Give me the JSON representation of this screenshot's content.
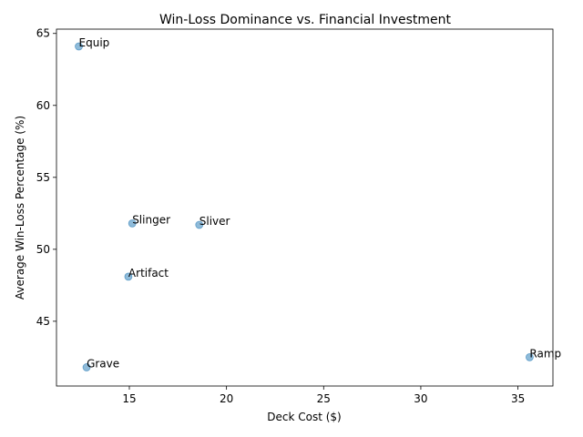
{
  "chart_data": {
    "type": "scatter",
    "title": "Win-Loss Dominance vs. Financial Investment",
    "xlabel": "Deck Cost ($)",
    "ylabel": "Average Win-Loss Percentage (%)",
    "xlim": [
      11.25,
      36.8
    ],
    "ylim": [
      40.5,
      65.3
    ],
    "xticks": [
      15,
      20,
      25,
      30,
      35
    ],
    "yticks": [
      45,
      50,
      55,
      60,
      65
    ],
    "grid": false,
    "point_color": "#1f77b4",
    "points": [
      {
        "label": "Equip",
        "x": 12.4,
        "y": 64.1
      },
      {
        "label": "Slinger",
        "x": 15.15,
        "y": 51.8
      },
      {
        "label": "Sliver",
        "x": 18.6,
        "y": 51.7
      },
      {
        "label": "Artifact",
        "x": 14.95,
        "y": 48.1
      },
      {
        "label": "Ramp",
        "x": 35.6,
        "y": 42.5
      },
      {
        "label": "Grave",
        "x": 12.8,
        "y": 41.8
      }
    ]
  }
}
